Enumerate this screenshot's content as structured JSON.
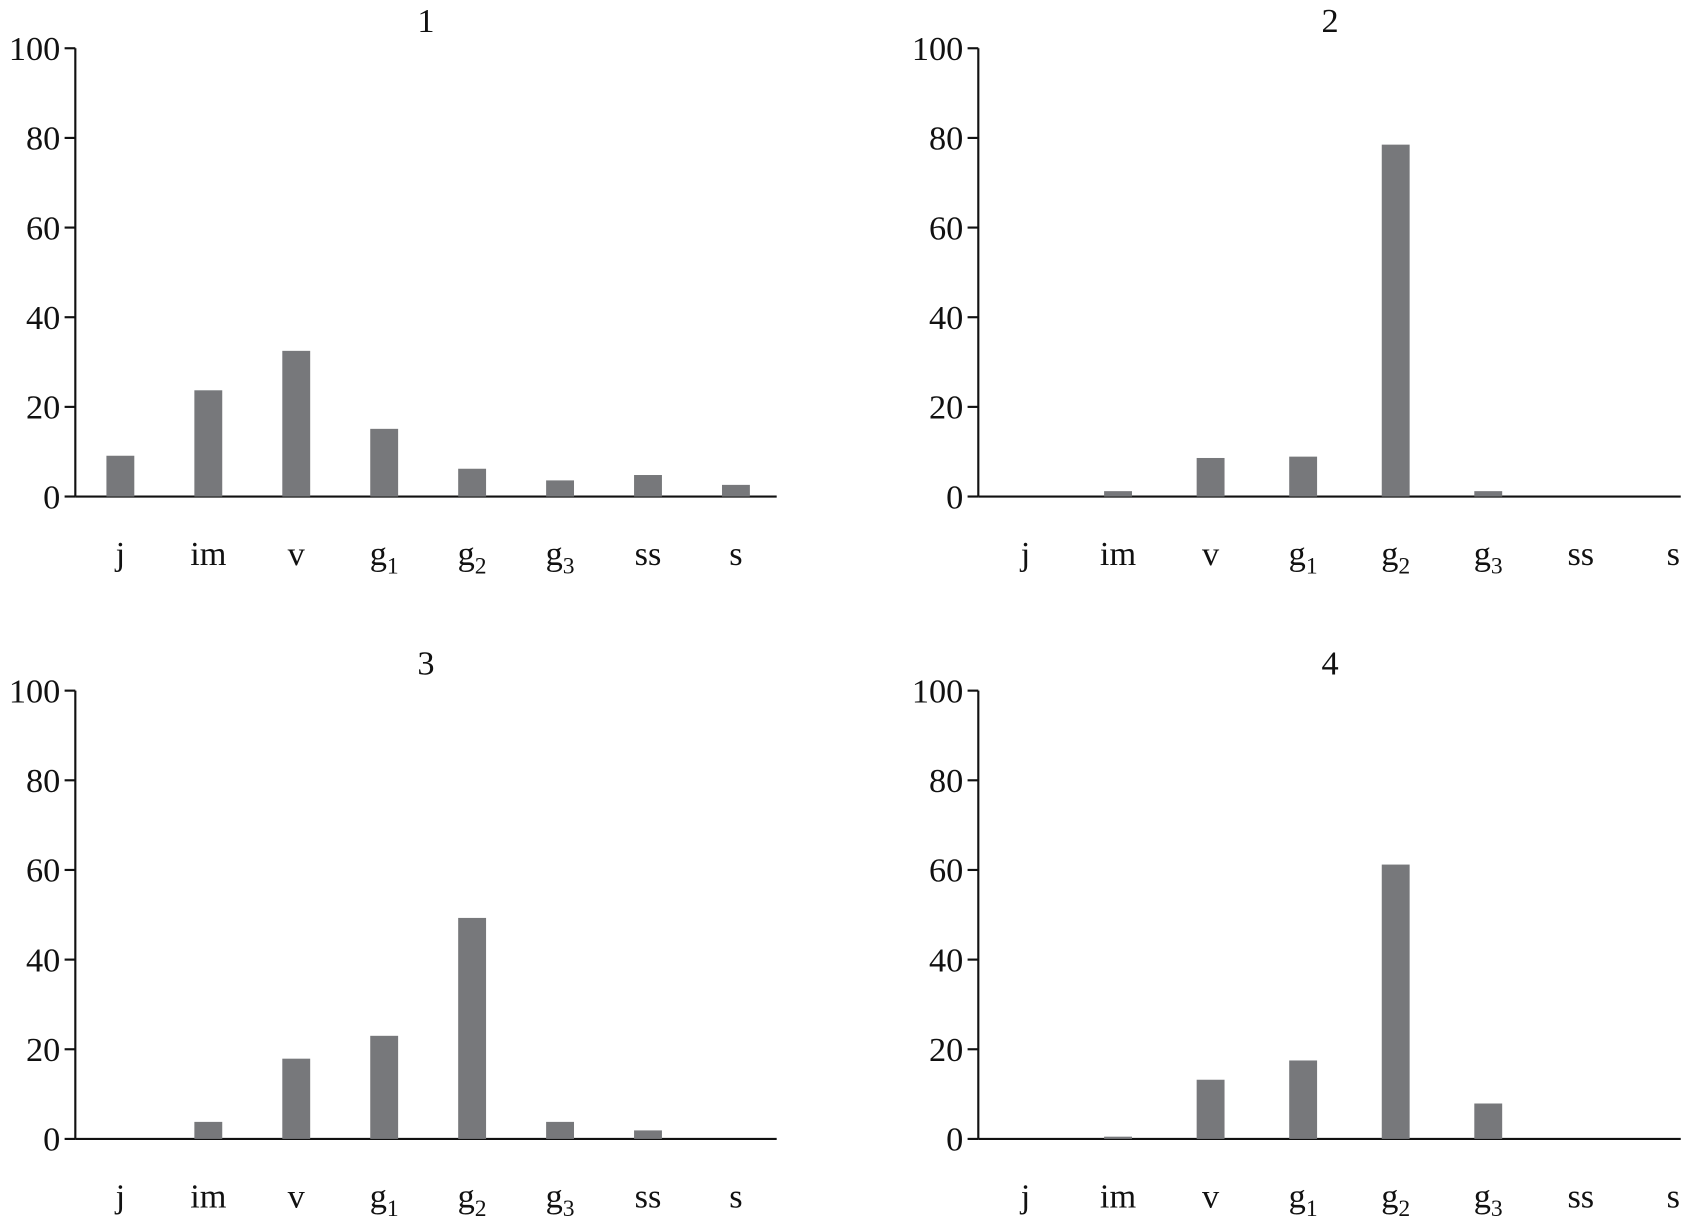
{
  "chart_data": [
    {
      "type": "bar",
      "title": "1",
      "categories": [
        "j",
        "im",
        "v",
        "g1",
        "g2",
        "g3",
        "ss",
        "s"
      ],
      "category_labels": [
        {
          "base": "j",
          "sub": ""
        },
        {
          "base": "im",
          "sub": ""
        },
        {
          "base": "v",
          "sub": ""
        },
        {
          "base": "g",
          "sub": "1"
        },
        {
          "base": "g",
          "sub": "2"
        },
        {
          "base": "g",
          "sub": "3"
        },
        {
          "base": "ss",
          "sub": ""
        },
        {
          "base": "s",
          "sub": ""
        }
      ],
      "values": [
        9.1,
        23.7,
        32.5,
        15.1,
        6.2,
        3.6,
        4.8,
        2.6
      ],
      "ylim": [
        0,
        100
      ],
      "yticks": [
        "0",
        "20",
        "40",
        "60",
        "80",
        "100"
      ],
      "grid": false,
      "bar_color": "#77787b"
    },
    {
      "type": "bar",
      "title": "2",
      "categories": [
        "j",
        "im",
        "v",
        "g1",
        "g2",
        "g3",
        "ss",
        "s"
      ],
      "category_labels": [
        {
          "base": "j",
          "sub": ""
        },
        {
          "base": "im",
          "sub": ""
        },
        {
          "base": "v",
          "sub": ""
        },
        {
          "base": "g",
          "sub": "1"
        },
        {
          "base": "g",
          "sub": "2"
        },
        {
          "base": "g",
          "sub": "3"
        },
        {
          "base": "ss",
          "sub": ""
        },
        {
          "base": "s",
          "sub": ""
        }
      ],
      "values": [
        0,
        1.2,
        8.6,
        8.9,
        78.5,
        1.2,
        0,
        0
      ],
      "ylim": [
        0,
        100
      ],
      "yticks": [
        "0",
        "20",
        "40",
        "60",
        "80",
        "100"
      ],
      "grid": false,
      "bar_color": "#77787b"
    },
    {
      "type": "bar",
      "title": "3",
      "categories": [
        "j",
        "im",
        "v",
        "g1",
        "g2",
        "g3",
        "ss",
        "s"
      ],
      "category_labels": [
        {
          "base": "j",
          "sub": ""
        },
        {
          "base": "im",
          "sub": ""
        },
        {
          "base": "v",
          "sub": ""
        },
        {
          "base": "g",
          "sub": "1"
        },
        {
          "base": "g",
          "sub": "2"
        },
        {
          "base": "g",
          "sub": "3"
        },
        {
          "base": "ss",
          "sub": ""
        },
        {
          "base": "s",
          "sub": ""
        }
      ],
      "values": [
        0,
        3.8,
        17.9,
        23.0,
        49.3,
        3.8,
        1.9,
        0
      ],
      "ylim": [
        0,
        100
      ],
      "yticks": [
        "0",
        "20",
        "40",
        "60",
        "80",
        "100"
      ],
      "grid": false,
      "bar_color": "#77787b"
    },
    {
      "type": "bar",
      "title": "4",
      "categories": [
        "j",
        "im",
        "v",
        "g1",
        "g2",
        "g3",
        "ss",
        "s"
      ],
      "category_labels": [
        {
          "base": "j",
          "sub": ""
        },
        {
          "base": "im",
          "sub": ""
        },
        {
          "base": "v",
          "sub": ""
        },
        {
          "base": "g",
          "sub": "1"
        },
        {
          "base": "g",
          "sub": "2"
        },
        {
          "base": "g",
          "sub": "3"
        },
        {
          "base": "ss",
          "sub": ""
        },
        {
          "base": "s",
          "sub": ""
        }
      ],
      "values": [
        0,
        0.5,
        13.2,
        17.5,
        61.2,
        7.9,
        0,
        0
      ],
      "ylim": [
        0,
        100
      ],
      "yticks": [
        "0",
        "20",
        "40",
        "60",
        "80",
        "100"
      ],
      "grid": false,
      "bar_color": "#77787b"
    }
  ]
}
